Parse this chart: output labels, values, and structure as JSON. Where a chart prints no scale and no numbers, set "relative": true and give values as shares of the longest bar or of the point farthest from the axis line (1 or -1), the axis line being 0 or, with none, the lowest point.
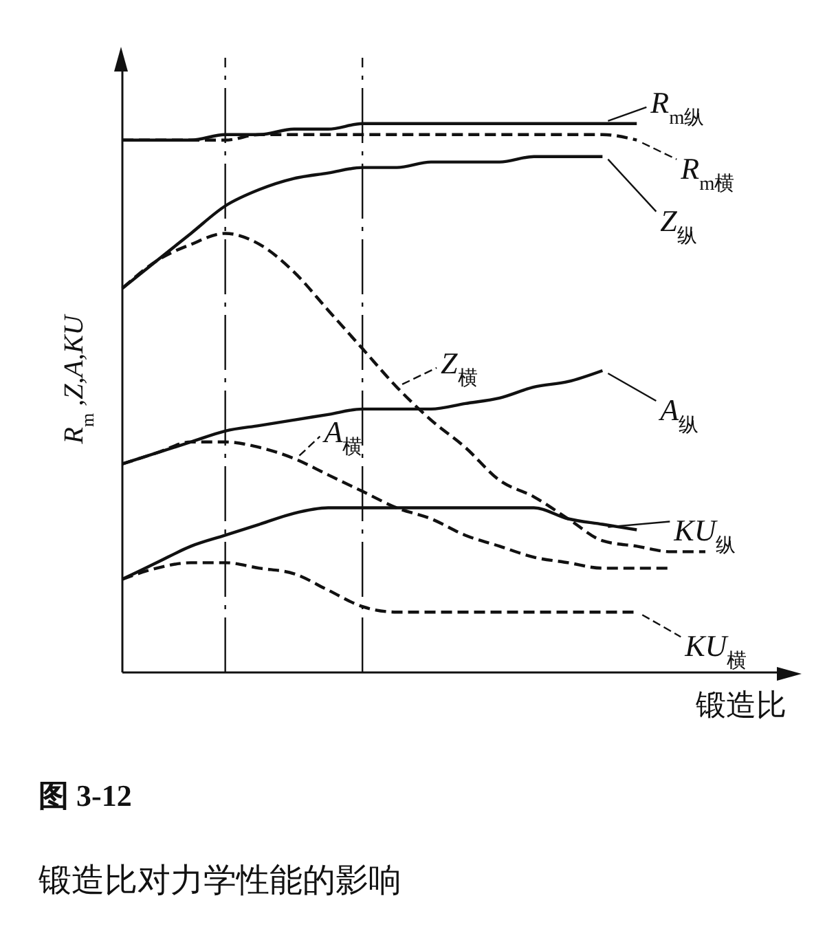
{
  "chart_data": {
    "type": "line",
    "title": "图 3-12",
    "subtitle": "锻造比对力学性能的影响",
    "xlabel": "锻造比",
    "ylabel": "R$_{m}$,Z,A,KU",
    "relative": true,
    "grid": false,
    "marker": "none",
    "legend": "right",
    "categories": [
      null,
      null,
      null,
      null,
      null,
      null,
      null,
      null,
      null,
      null,
      null,
      null,
      null,
      null,
      null,
      null,
      null,
      null
    ],
    "series": [
      {
        "name": "R$_{m纵}$",
        "color": "#111111",
        "line_style": "solid",
        "values": [
          0.97,
          0.97,
          0.97,
          0.98,
          0.98,
          0.99,
          0.99,
          1,
          1,
          1,
          1,
          1,
          1,
          1,
          1,
          1,
          null,
          null
        ]
      },
      {
        "name": "R$_{m横}$",
        "color": "#111111",
        "line_style": "dashed",
        "values": [
          0.97,
          0.97,
          0.97,
          0.97,
          0.98,
          0.98,
          0.98,
          0.98,
          0.98,
          0.98,
          0.98,
          0.98,
          0.98,
          0.98,
          0.98,
          0.97,
          null,
          null
        ]
      },
      {
        "name": "Z$_{纵}$",
        "color": "#111111",
        "line_style": "solid",
        "values": [
          0.7,
          0.75,
          0.8,
          0.85,
          0.88,
          0.9,
          0.91,
          0.92,
          0.92,
          0.93,
          0.93,
          0.93,
          0.94,
          0.94,
          0.94,
          null,
          null,
          null
        ]
      },
      {
        "name": "Z$_{横}$",
        "color": "#111111",
        "line_style": "dashed",
        "values": [
          0.7,
          0.75,
          0.78,
          0.8,
          0.78,
          0.73,
          0.66,
          0.59,
          0.52,
          0.46,
          0.41,
          0.35,
          0.32,
          0.28,
          0.24,
          0.23,
          0.22,
          0.22
        ]
      },
      {
        "name": "A$_{纵}$",
        "color": "#111111",
        "line_style": "solid",
        "values": [
          0.38,
          0.4,
          0.42,
          0.44,
          0.45,
          0.46,
          0.47,
          0.48,
          0.48,
          0.48,
          0.49,
          0.5,
          0.52,
          0.53,
          0.55,
          null,
          null,
          null
        ]
      },
      {
        "name": "A$_{横}$",
        "color": "#111111",
        "line_style": "dashed",
        "values": [
          0.38,
          0.4,
          0.42,
          0.42,
          0.41,
          0.39,
          0.36,
          0.33,
          0.3,
          0.28,
          0.25,
          0.23,
          0.21,
          0.2,
          0.19,
          0.19,
          0.19,
          null
        ]
      },
      {
        "name": "KU$_{纵}$",
        "color": "#111111",
        "line_style": "solid",
        "values": [
          0.17,
          0.2,
          0.23,
          0.25,
          0.27,
          0.29,
          0.3,
          0.3,
          0.3,
          0.3,
          0.3,
          0.3,
          0.3,
          0.28,
          0.27,
          0.26,
          null,
          null
        ]
      },
      {
        "name": "KU$_{横}$",
        "color": "#111111",
        "line_style": "dashed",
        "values": [
          0.17,
          0.19,
          0.2,
          0.2,
          0.19,
          0.18,
          0.15,
          0.12,
          0.11,
          0.11,
          0.11,
          0.11,
          0.11,
          0.11,
          0.11,
          0.11,
          null,
          null
        ]
      }
    ]
  }
}
